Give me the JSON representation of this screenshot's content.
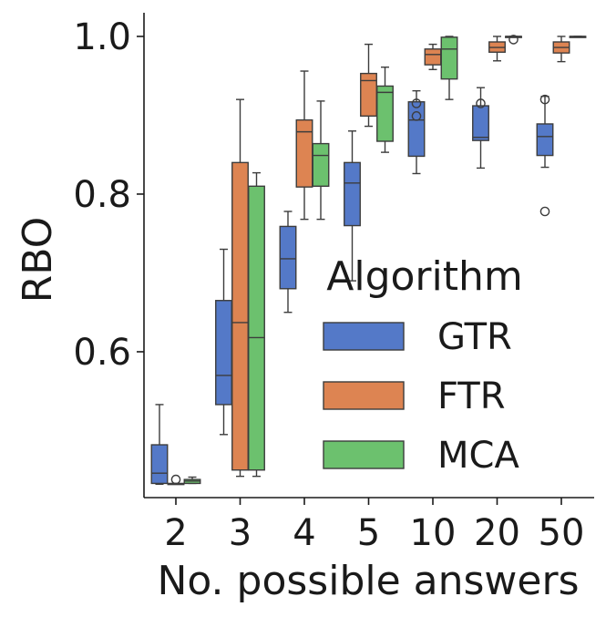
{
  "chart_data": {
    "type": "box",
    "xlabel": "No. possible answers",
    "ylabel": "RBO",
    "categories": [
      "2",
      "3",
      "4",
      "5",
      "10",
      "20",
      "50"
    ],
    "yticks": [
      "0.6",
      "0.8",
      "1.0"
    ],
    "ytick_values": [
      0.6,
      0.8,
      1.0
    ],
    "ylim": [
      0.415,
      1.03
    ],
    "legend": {
      "title": "Algorithm",
      "placement": "right"
    },
    "series": [
      {
        "name": "GTR",
        "color": "#5479c8",
        "boxes": [
          {
            "category": "2",
            "whislo": 0.432,
            "q1": 0.433,
            "med": 0.446,
            "q3": 0.482,
            "whishi": 0.533,
            "fliers": []
          },
          {
            "category": "3",
            "whislo": 0.495,
            "q1": 0.533,
            "med": 0.57,
            "q3": 0.665,
            "whishi": 0.73,
            "fliers": []
          },
          {
            "category": "4",
            "whislo": 0.65,
            "q1": 0.68,
            "med": 0.718,
            "q3": 0.759,
            "whishi": 0.778,
            "fliers": []
          },
          {
            "category": "5",
            "whislo": 0.69,
            "q1": 0.76,
            "med": 0.814,
            "q3": 0.84,
            "whishi": 0.88,
            "fliers": []
          },
          {
            "category": "10",
            "whislo": 0.826,
            "q1": 0.848,
            "med": 0.894,
            "q3": 0.917,
            "whishi": 0.931,
            "fliers": [
              0.915,
              0.899
            ]
          },
          {
            "category": "20",
            "whislo": 0.833,
            "q1": 0.868,
            "med": 0.872,
            "q3": 0.912,
            "whishi": 0.935,
            "fliers": [
              0.915
            ]
          },
          {
            "category": "50",
            "whislo": 0.834,
            "q1": 0.849,
            "med": 0.873,
            "q3": 0.889,
            "whishi": 0.924,
            "fliers": [
              0.92,
              0.778
            ]
          }
        ]
      },
      {
        "name": "FTR",
        "color": "#dd8452",
        "boxes": [
          {
            "category": "2",
            "whislo": 0.432,
            "q1": 0.432,
            "med": 0.432,
            "q3": 0.433,
            "whishi": 0.433,
            "fliers": [
              0.438
            ]
          },
          {
            "category": "3",
            "whislo": 0.442,
            "q1": 0.45,
            "med": 0.637,
            "q3": 0.84,
            "whishi": 0.92,
            "fliers": []
          },
          {
            "category": "4",
            "whislo": 0.768,
            "q1": 0.809,
            "med": 0.879,
            "q3": 0.894,
            "whishi": 0.956,
            "fliers": []
          },
          {
            "category": "5",
            "whislo": 0.886,
            "q1": 0.899,
            "med": 0.944,
            "q3": 0.953,
            "whishi": 0.99,
            "fliers": []
          },
          {
            "category": "10",
            "whislo": 0.958,
            "q1": 0.964,
            "med": 0.977,
            "q3": 0.984,
            "whishi": 0.99,
            "fliers": []
          },
          {
            "category": "20",
            "whislo": 0.969,
            "q1": 0.98,
            "med": 0.986,
            "q3": 0.993,
            "whishi": 1.0,
            "fliers": []
          },
          {
            "category": "50",
            "whislo": 0.968,
            "q1": 0.979,
            "med": 0.986,
            "q3": 0.993,
            "whishi": 1.0,
            "fliers": []
          }
        ]
      },
      {
        "name": "MCA",
        "color": "#6cc16e",
        "boxes": [
          {
            "category": "2",
            "whislo": 0.433,
            "q1": 0.433,
            "med": 0.436,
            "q3": 0.438,
            "whishi": 0.441,
            "fliers": []
          },
          {
            "category": "3",
            "whislo": 0.442,
            "q1": 0.45,
            "med": 0.618,
            "q3": 0.81,
            "whishi": 0.827,
            "fliers": []
          },
          {
            "category": "4",
            "whislo": 0.768,
            "q1": 0.81,
            "med": 0.849,
            "q3": 0.864,
            "whishi": 0.918,
            "fliers": []
          },
          {
            "category": "5",
            "whislo": 0.853,
            "q1": 0.867,
            "med": 0.929,
            "q3": 0.937,
            "whishi": 0.961,
            "fliers": []
          },
          {
            "category": "10",
            "whislo": 0.92,
            "q1": 0.946,
            "med": 0.984,
            "q3": 0.999,
            "whishi": 1.0,
            "fliers": []
          },
          {
            "category": "20",
            "whislo": 1.0,
            "q1": 1.0,
            "med": 1.0,
            "q3": 1.0,
            "whishi": 1.0,
            "fliers": [
              0.996
            ]
          },
          {
            "category": "50",
            "whislo": 1.0,
            "q1": 1.0,
            "med": 1.0,
            "q3": 1.0,
            "whishi": 1.0,
            "fliers": []
          }
        ]
      }
    ]
  }
}
